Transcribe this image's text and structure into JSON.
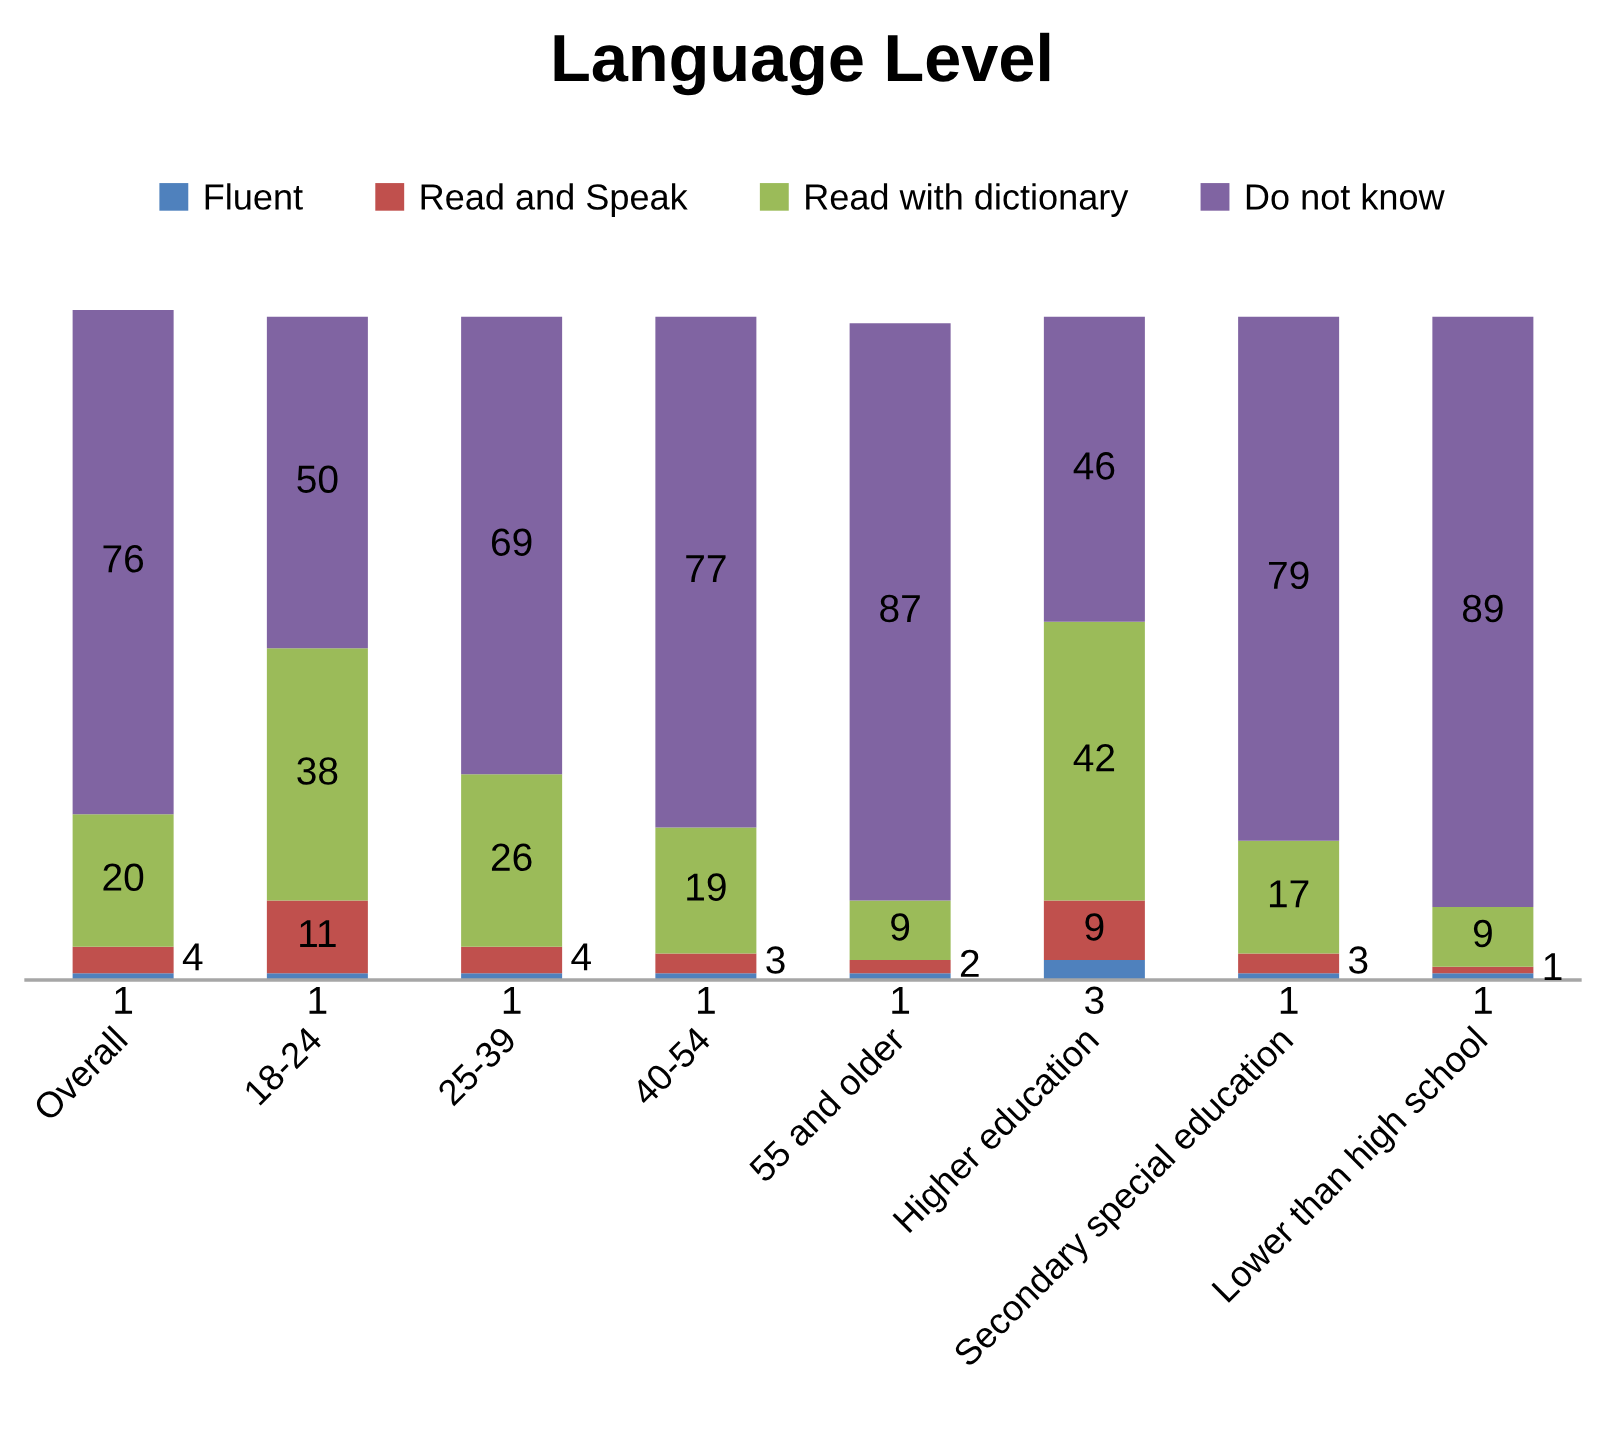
{
  "chart_data": {
    "type": "bar",
    "title": "Language Level",
    "stacked": true,
    "data_labels": true,
    "legend": "top",
    "categories": [
      "Overall",
      "18-24",
      "25-39",
      "40-54",
      "55 and older",
      "Higher education",
      "Secondary special education",
      "Lower than high school"
    ],
    "series": [
      {
        "name": "Fluent",
        "color": "#4f81bd",
        "values": [
          1,
          1,
          1,
          1,
          1,
          3,
          1,
          1
        ]
      },
      {
        "name": "Read and Speak",
        "color": "#c0504d",
        "values": [
          4,
          11,
          4,
          3,
          2,
          9,
          3,
          1
        ]
      },
      {
        "name": "Read with dictionary",
        "color": "#9bbb59",
        "values": [
          20,
          38,
          26,
          19,
          9,
          42,
          17,
          9
        ]
      },
      {
        "name": "Do not know",
        "color": "#8064a2",
        "values": [
          76,
          50,
          69,
          77,
          87,
          46,
          79,
          89
        ]
      }
    ]
  }
}
